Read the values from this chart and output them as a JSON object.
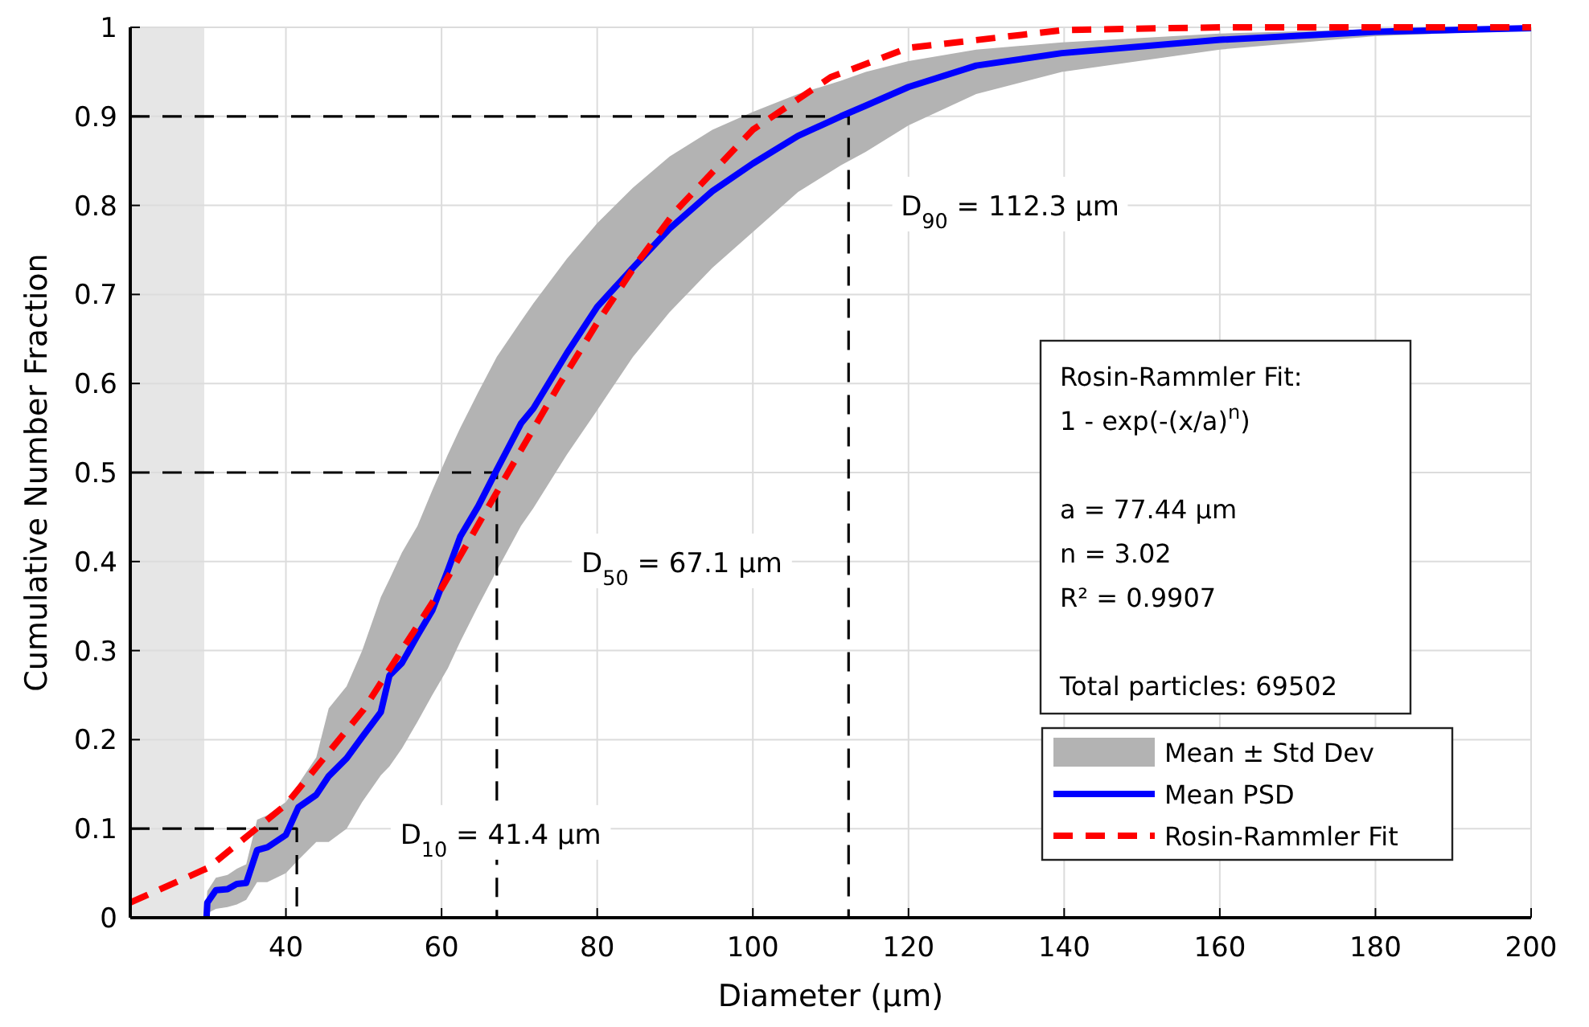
{
  "chart_data": {
    "type": "line",
    "xlabel": "Diameter (µm)",
    "ylabel": "Cumulative Number Fraction",
    "xlim": [
      20,
      200
    ],
    "ylim": [
      0,
      1
    ],
    "xticks": [
      40,
      60,
      80,
      100,
      120,
      140,
      160,
      180,
      200
    ],
    "yticks": [
      0,
      0.1,
      0.2,
      0.3,
      0.4,
      0.5,
      0.6,
      0.7,
      0.8,
      0.9,
      1
    ],
    "grid": true,
    "legend": "bottom right",
    "bands": [
      {
        "axis": "x",
        "from": 20,
        "to": 29.5,
        "color": "#e6e6e6"
      }
    ],
    "series": [
      {
        "name": "Mean PSD",
        "color": "#0000ff",
        "line_style": "solid",
        "x": [
          29.8,
          29.9,
          31.0,
          32.5,
          33.7,
          34.9,
          36.3,
          37.6,
          40,
          41.6,
          43.9,
          45.5,
          47.8,
          49.8,
          52.2,
          53.3,
          54.9,
          56.9,
          58.8,
          60.8,
          62.4,
          64.7,
          67.1,
          70.2,
          71.8,
          76.1,
          80,
          84.6,
          89.3,
          94.8,
          100,
          105.8,
          111.3,
          114.5,
          120,
          128.7,
          139.7,
          160,
          180,
          200
        ],
        "values": [
          0,
          0.017,
          0.031,
          0.032,
          0.038,
          0.039,
          0.076,
          0.079,
          0.093,
          0.124,
          0.138,
          0.159,
          0.179,
          0.203,
          0.231,
          0.272,
          0.286,
          0.317,
          0.345,
          0.39,
          0.428,
          0.462,
          0.503,
          0.555,
          0.572,
          0.634,
          0.686,
          0.73,
          0.774,
          0.816,
          0.847,
          0.878,
          0.9,
          0.912,
          0.933,
          0.957,
          0.971,
          0.986,
          0.995,
          0.999
        ],
        "lower": [
          0.0,
          0.005,
          0.01,
          0.012,
          0.015,
          0.02,
          0.04,
          0.04,
          0.05,
          0.065,
          0.085,
          0.085,
          0.1,
          0.13,
          0.16,
          0.17,
          0.19,
          0.22,
          0.25,
          0.28,
          0.31,
          0.35,
          0.39,
          0.44,
          0.46,
          0.52,
          0.57,
          0.63,
          0.68,
          0.73,
          0.77,
          0.815,
          0.845,
          0.86,
          0.89,
          0.925,
          0.95,
          0.975,
          0.99,
          0.997
        ],
        "upper": [
          0.02,
          0.03,
          0.045,
          0.048,
          0.055,
          0.06,
          0.11,
          0.115,
          0.13,
          0.15,
          0.18,
          0.235,
          0.26,
          0.3,
          0.36,
          0.38,
          0.41,
          0.44,
          0.48,
          0.52,
          0.55,
          0.59,
          0.63,
          0.67,
          0.69,
          0.74,
          0.78,
          0.82,
          0.855,
          0.885,
          0.905,
          0.925,
          0.94,
          0.95,
          0.962,
          0.975,
          0.983,
          0.993,
          0.998,
          1.0
        ]
      },
      {
        "name": "Rosin-Rammler Fit",
        "color": "#ff0000",
        "line_style": "dashed",
        "x": [
          20,
          30,
          40,
          50,
          60,
          65,
          70,
          75,
          80,
          85,
          90,
          100,
          110,
          120,
          140,
          160,
          200
        ],
        "values": [
          0.017,
          0.056,
          0.127,
          0.234,
          0.37,
          0.446,
          0.522,
          0.597,
          0.668,
          0.734,
          0.793,
          0.885,
          0.944,
          0.977,
          0.997,
          1.0,
          1.0
        ]
      },
      {
        "color": "#000000",
        "line_style": "dashed",
        "x": [
          20,
          41.4,
          41.4
        ],
        "values": [
          0.1,
          0.1,
          0
        ]
      },
      {
        "color": "#000000",
        "line_style": "dashed",
        "x": [
          20,
          67.1,
          67.1
        ],
        "values": [
          0.5,
          0.5,
          0
        ]
      },
      {
        "color": "#000000",
        "line_style": "dashed",
        "x": [
          20,
          112.3,
          112.3
        ],
        "values": [
          0.9,
          0.9,
          0
        ]
      }
    ],
    "annotations": [
      {
        "text": "D$_{10}$ = 41.4 µm",
        "x": 67.6,
        "y": 0.094
      },
      "D$_{50}$ = 67.1 µm",
      "D$_{90}$ = 112.3 µm",
      "Rosin-Rammler Fit:\n1 - exp(-(x/a)$^{n}$)\n\na = 77.44 µm\nn = 3.02\nR² = 0.9907\n\nTotal particles: 69502",
      "Mean ± Std Dev"
    ]
  }
}
